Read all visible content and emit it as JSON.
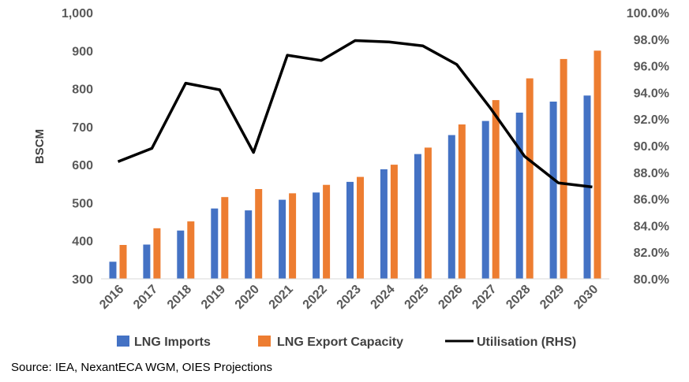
{
  "chart_data": {
    "type": "bar",
    "categories": [
      "2016",
      "2017",
      "2018",
      "2019",
      "2020",
      "2021",
      "2022",
      "2023",
      "2024",
      "2025",
      "2026",
      "2027",
      "2028",
      "2029",
      "2030"
    ],
    "series": [
      {
        "name": "LNG Imports",
        "axis": "left",
        "color": "#4472C4",
        "values": [
          345,
          390,
          427,
          485,
          480,
          508,
          527,
          555,
          588,
          628,
          678,
          715,
          737,
          766,
          782
        ]
      },
      {
        "name": "LNG Export Capacity",
        "axis": "left",
        "color": "#ED7D31",
        "values": [
          389,
          433,
          451,
          515,
          536,
          525,
          547,
          568,
          600,
          645,
          706,
          770,
          827,
          878,
          900
        ]
      },
      {
        "name": "Utilisation (RHS)",
        "type": "line",
        "axis": "right",
        "color": "#000000",
        "values": [
          88.8,
          89.8,
          94.7,
          94.2,
          89.5,
          96.8,
          96.4,
          97.9,
          97.8,
          97.5,
          96.1,
          92.8,
          89.2,
          87.2,
          86.9
        ]
      }
    ],
    "ylabel": "BSCM",
    "ylim": [
      300,
      1000
    ],
    "yticks": [
      "300",
      "400",
      "500",
      "600",
      "700",
      "800",
      "900",
      "1,000"
    ],
    "y2lim": [
      80,
      100
    ],
    "y2ticks": [
      "80.0%",
      "82.0%",
      "84.0%",
      "86.0%",
      "88.0%",
      "90.0%",
      "92.0%",
      "94.0%",
      "96.0%",
      "98.0%",
      "100.0%"
    ],
    "legend": "bottom",
    "grid": false
  },
  "source": "Source: IEA, NexantECA WGM, OIES Projections"
}
